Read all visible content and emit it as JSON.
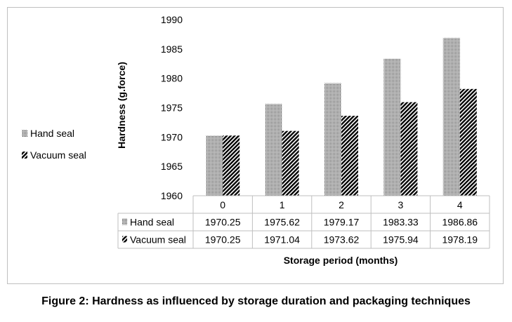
{
  "caption": "Figure 2: Hardness as influenced by storage duration and packaging techniques",
  "chart_data": {
    "type": "bar",
    "ylabel": "Hardness (g.force)",
    "xlabel": "Storage period (months)",
    "ylim": [
      1960,
      1990
    ],
    "yticks": [
      1960,
      1965,
      1970,
      1975,
      1980,
      1985,
      1990
    ],
    "categories": [
      "0",
      "1",
      "2",
      "3",
      "4"
    ],
    "series": [
      {
        "name": "Hand seal",
        "pattern": "dots",
        "values": [
          1970.25,
          1975.62,
          1979.17,
          1983.33,
          1986.86
        ]
      },
      {
        "name": "Vacuum seal",
        "pattern": "diagonal",
        "values": [
          1970.25,
          1971.04,
          1973.62,
          1975.94,
          1978.19
        ]
      }
    ],
    "series_labels": [
      [
        "1970.25",
        "1975.62",
        "1979.17",
        "1983.33",
        "1986.86"
      ],
      [
        "1970.25",
        "1971.04",
        "1973.62",
        "1975.94",
        "1978.19"
      ]
    ],
    "legend": "left",
    "grid": false,
    "data_table": true
  }
}
